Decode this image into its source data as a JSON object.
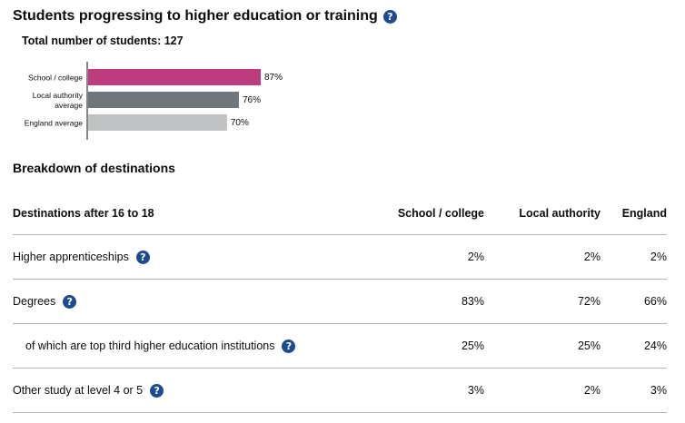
{
  "section": {
    "title": "Students progressing to higher education or training",
    "help_icon": "?",
    "total_label": "Total number of students: 127"
  },
  "chart_data": {
    "type": "bar",
    "orientation": "horizontal",
    "categories": [
      [
        "School / college"
      ],
      [
        "Local authority",
        "average"
      ],
      [
        "England average"
      ]
    ],
    "values": [
      87,
      76,
      70
    ],
    "value_labels": [
      "87%",
      "76%",
      "70%"
    ],
    "colors": [
      "#bd3b7f",
      "#6f777b",
      "#bfc1c3"
    ],
    "xlim": [
      0,
      100
    ],
    "grid": false
  },
  "breakdown": {
    "title": "Breakdown of destinations",
    "headers": [
      "Destinations after 16 to 18",
      "School / college",
      "Local authority",
      "England"
    ],
    "rows": [
      {
        "label": "Higher apprenticeships",
        "values": [
          "2%",
          "2%",
          "2%"
        ],
        "help": "?"
      },
      {
        "label": "Degrees",
        "values": [
          "83%",
          "72%",
          "66%"
        ],
        "help": "?"
      },
      {
        "label": "of which are top third higher education institutions",
        "values": [
          "25%",
          "25%",
          "24%"
        ],
        "help": "?"
      },
      {
        "label": "Other study at level 4 or 5",
        "values": [
          "3%",
          "2%",
          "3%"
        ],
        "help": "?"
      }
    ]
  }
}
